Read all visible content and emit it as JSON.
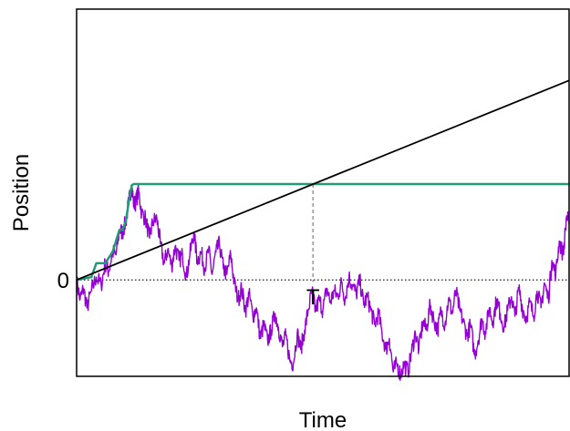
{
  "chart_data": {
    "type": "line",
    "xlabel": "Time",
    "ylabel": "Position",
    "xlim": [
      0,
      1
    ],
    "ylim": [
      -1.73,
      4.86
    ],
    "grid": false,
    "y_reference": {
      "value": 0,
      "label": "0"
    },
    "hitting_time": {
      "x": 0.48,
      "label": "T"
    },
    "colors": {
      "path": "#9400d3",
      "running_max": "#229977",
      "drift_line": "#000000",
      "reference": "#000000",
      "hitting_marker": "#999999"
    },
    "series": [
      {
        "role": "path",
        "x": [
          0,
          0.007,
          0.014,
          0.021,
          0.03,
          0.04,
          0.05,
          0.058,
          0.065,
          0.073,
          0.08,
          0.087,
          0.093,
          0.1,
          0.106,
          0.112,
          0.116,
          0.12,
          0.126,
          0.132,
          0.14,
          0.148,
          0.155,
          0.163,
          0.17,
          0.178,
          0.185,
          0.193,
          0.2,
          0.208,
          0.215,
          0.223,
          0.23,
          0.238,
          0.245,
          0.253,
          0.26,
          0.268,
          0.275,
          0.283,
          0.29,
          0.298,
          0.305,
          0.313,
          0.32,
          0.328,
          0.335,
          0.343,
          0.35,
          0.358,
          0.365,
          0.373,
          0.38,
          0.388,
          0.395,
          0.403,
          0.41,
          0.418,
          0.425,
          0.433,
          0.44,
          0.448,
          0.455,
          0.463,
          0.47,
          0.478,
          0.485,
          0.493,
          0.5,
          0.508,
          0.515,
          0.523,
          0.53,
          0.538,
          0.545,
          0.553,
          0.56,
          0.568,
          0.575,
          0.583,
          0.59,
          0.598,
          0.605,
          0.613,
          0.62,
          0.628,
          0.635,
          0.643,
          0.65,
          0.658,
          0.665,
          0.673,
          0.68,
          0.688,
          0.695,
          0.703,
          0.71,
          0.718,
          0.725,
          0.733,
          0.74,
          0.748,
          0.755,
          0.763,
          0.77,
          0.778,
          0.785,
          0.793,
          0.8,
          0.808,
          0.815,
          0.823,
          0.83,
          0.838,
          0.845,
          0.853,
          0.86,
          0.868,
          0.875,
          0.883,
          0.89,
          0.898,
          0.905,
          0.913,
          0.92,
          0.928,
          0.935,
          0.943,
          0.95,
          0.958,
          0.965,
          0.973,
          0.98,
          0.988,
          0.995,
          1.0
        ],
        "y": [
          0,
          -0.35,
          -0.15,
          -0.5,
          -0.2,
          0.05,
          -0.1,
          0.3,
          0.15,
          0.5,
          0.45,
          0.9,
          0.85,
          1.05,
          1.4,
          1.7,
          1.35,
          1.4,
          1.6,
          1.2,
          1.1,
          0.75,
          1.05,
          1.1,
          0.65,
          0.3,
          0.55,
          0.25,
          0.6,
          0.35,
          0.45,
          0.05,
          0.45,
          0.85,
          0.35,
          0.5,
          0.2,
          0.55,
          0.1,
          0.5,
          0.65,
          0.2,
          0.1,
          0.45,
          -0.05,
          -0.35,
          -0.15,
          -0.55,
          -0.25,
          -0.65,
          -0.5,
          -1.05,
          -0.8,
          -1.1,
          -0.9,
          -0.6,
          -0.85,
          -1.2,
          -1.0,
          -1.45,
          -1.5,
          -0.95,
          -1.25,
          -0.9,
          -0.55,
          -0.2,
          -0.55,
          -0.35,
          -0.55,
          -0.15,
          -0.4,
          -0.2,
          -0.3,
          -0.05,
          -0.35,
          0.05,
          -0.1,
          -0.25,
          0.0,
          -0.45,
          -0.3,
          -0.55,
          -0.8,
          -0.6,
          -0.95,
          -1.25,
          -1.05,
          -1.65,
          -1.5,
          -1.7,
          -1.5,
          -1.65,
          -1.3,
          -0.95,
          -1.25,
          -0.75,
          -0.9,
          -0.45,
          -0.7,
          -0.9,
          -0.55,
          -0.8,
          -0.35,
          -0.6,
          -0.2,
          -0.55,
          -0.75,
          -1.0,
          -0.8,
          -1.35,
          -1.1,
          -0.7,
          -0.95,
          -0.5,
          -0.75,
          -0.35,
          -0.6,
          -0.85,
          -0.55,
          -0.3,
          -0.65,
          -0.15,
          -0.5,
          -0.7,
          -0.4,
          -0.65,
          -0.2,
          -0.5,
          -0.05,
          -0.35,
          0.35,
          0.1,
          0.7,
          0.45,
          1.15,
          1.0
        ]
      },
      {
        "role": "running_max",
        "x": [
          0,
          0.03,
          0.04,
          0.058,
          0.073,
          0.087,
          0.093,
          0.1,
          0.106,
          0.112,
          0.116,
          1.0
        ],
        "y": [
          0,
          0.05,
          0.3,
          0.3,
          0.5,
          0.9,
          0.9,
          1.05,
          1.4,
          1.7,
          1.72,
          1.72
        ]
      },
      {
        "role": "drift_line",
        "x": [
          0,
          1
        ],
        "y": [
          0,
          3.58
        ]
      }
    ]
  }
}
